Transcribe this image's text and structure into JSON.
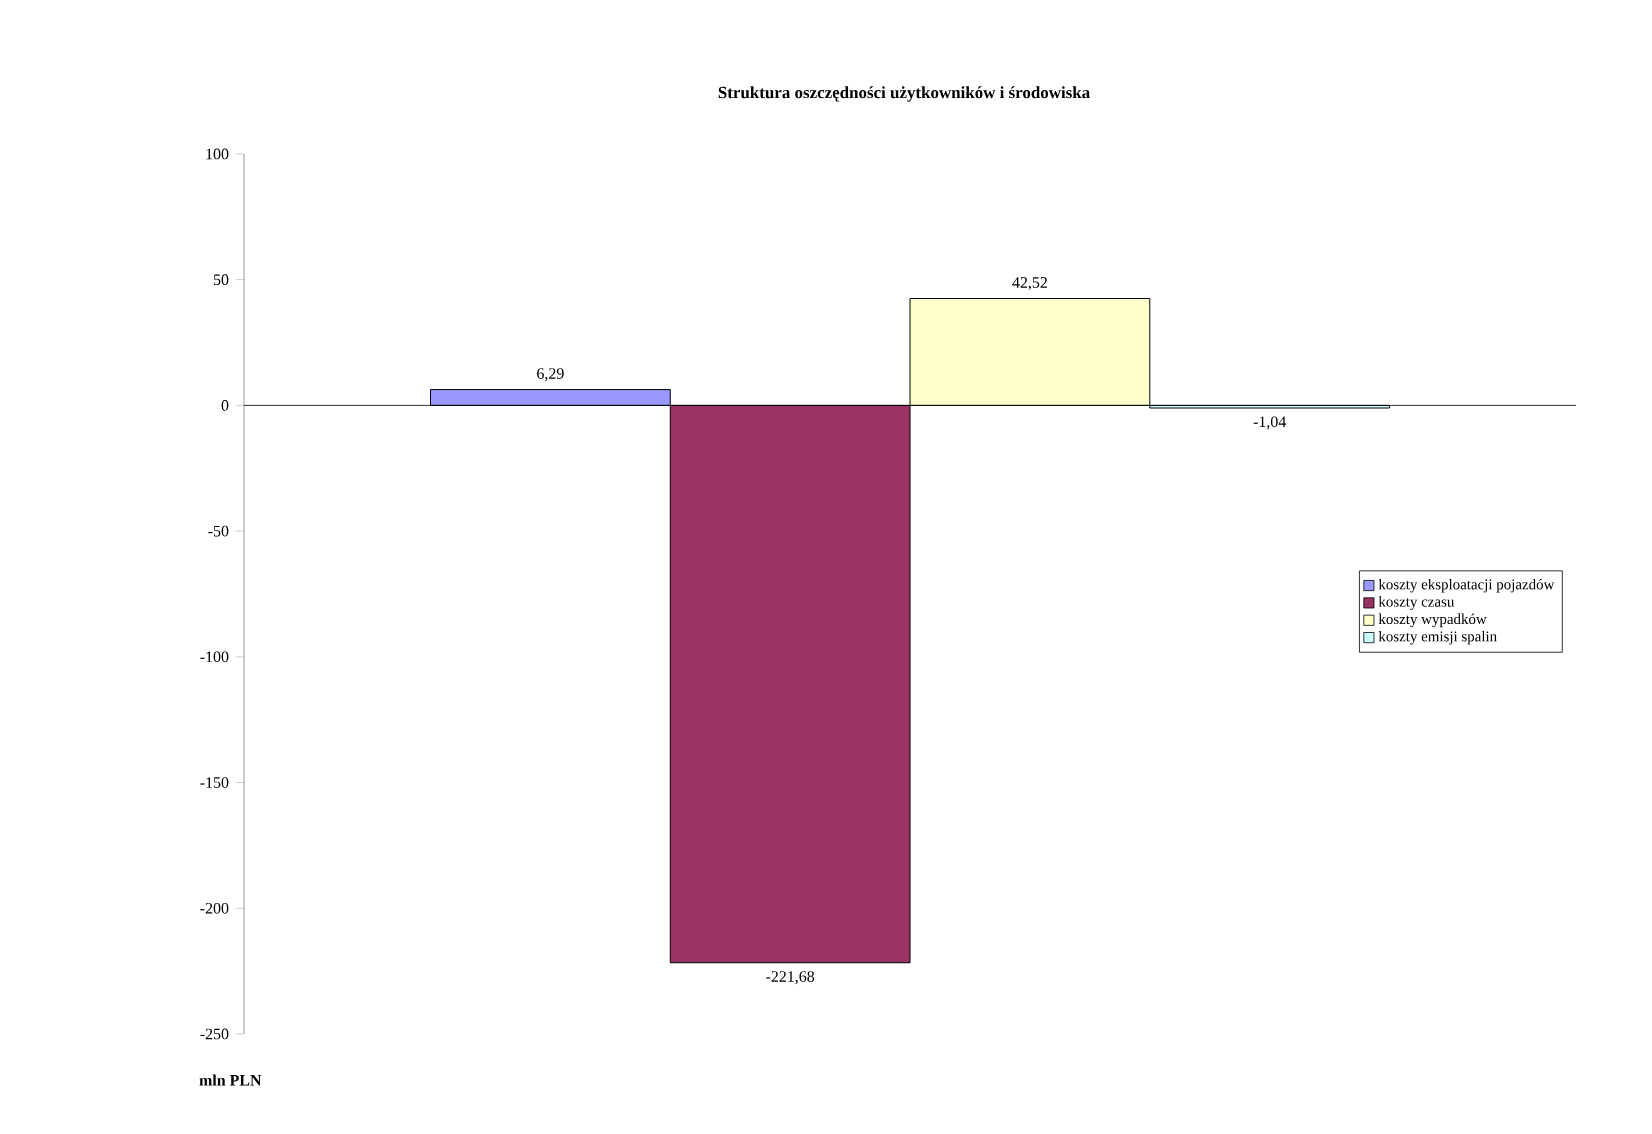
{
  "chart_data": {
    "type": "bar",
    "title": "Struktura oszczędności użytkowników i środowiska",
    "ylabel": "mln PLN",
    "categories": [
      null
    ],
    "series": [
      {
        "name": "koszty eksploatacji pojazdów",
        "color": "#9999ff",
        "values": [
          6.29
        ],
        "value_labels": [
          "6,29"
        ]
      },
      {
        "name": "koszty czasu",
        "color": "#993366",
        "values": [
          -221.68
        ],
        "value_labels": [
          "-221,68"
        ]
      },
      {
        "name": "koszty wypadków",
        "color": "#ffffcc",
        "values": [
          42.52
        ],
        "value_labels": [
          "42,52"
        ]
      },
      {
        "name": "koszty emisji spalin",
        "color": "#ccffff",
        "values": [
          -1.04
        ],
        "value_labels": [
          "-1,04"
        ]
      }
    ],
    "ylim": [
      -250,
      100
    ],
    "yticks": [
      -250,
      -200,
      -150,
      -100,
      -50,
      0,
      50,
      100
    ],
    "legend": "right"
  }
}
